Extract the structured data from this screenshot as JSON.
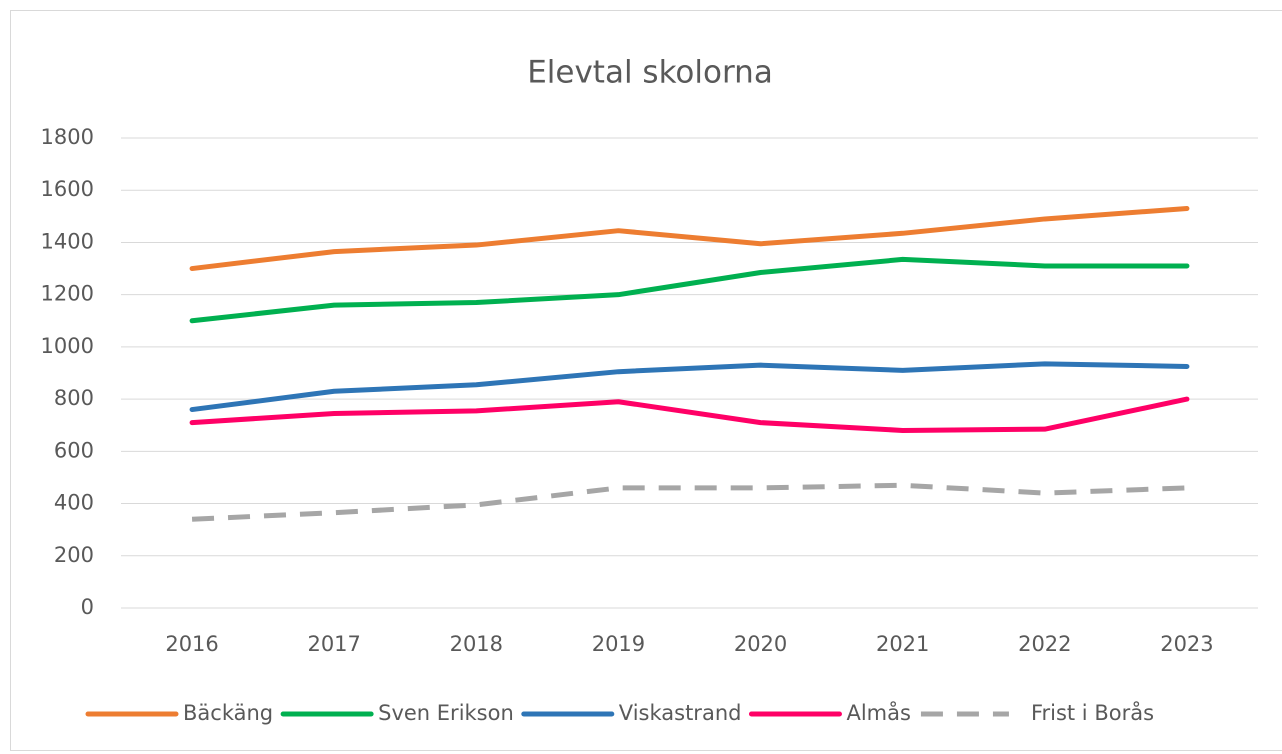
{
  "chart_data": {
    "type": "line",
    "title": "Elevtal skolorna",
    "categories": [
      "2016",
      "2017",
      "2018",
      "2019",
      "2020",
      "2021",
      "2022",
      "2023"
    ],
    "series": [
      {
        "name": "Bäckäng",
        "color": "#ED7D31",
        "values": [
          1300,
          1365,
          1390,
          1445,
          1395,
          1435,
          1490,
          1530
        ]
      },
      {
        "name": "Sven Erikson",
        "color": "#00B050",
        "values": [
          1100,
          1160,
          1170,
          1200,
          1285,
          1335,
          1310,
          1310
        ]
      },
      {
        "name": "Viskastrand",
        "color": "#2E75B6",
        "values": [
          760,
          830,
          855,
          905,
          930,
          910,
          935,
          925
        ]
      },
      {
        "name": "Almås",
        "color": "#FF0066",
        "values": [
          710,
          745,
          755,
          790,
          710,
          680,
          685,
          800
        ]
      },
      {
        "name": "Frist i Borås",
        "color": "#A6A6A6",
        "dashed": true,
        "values": [
          340,
          365,
          395,
          460,
          460,
          470,
          440,
          460
        ]
      }
    ],
    "ylim": [
      0,
      1800
    ],
    "yticks": [
      0,
      200,
      400,
      600,
      800,
      1000,
      1200,
      1400,
      1600,
      1800
    ],
    "grid": true,
    "legend": "bottom"
  }
}
